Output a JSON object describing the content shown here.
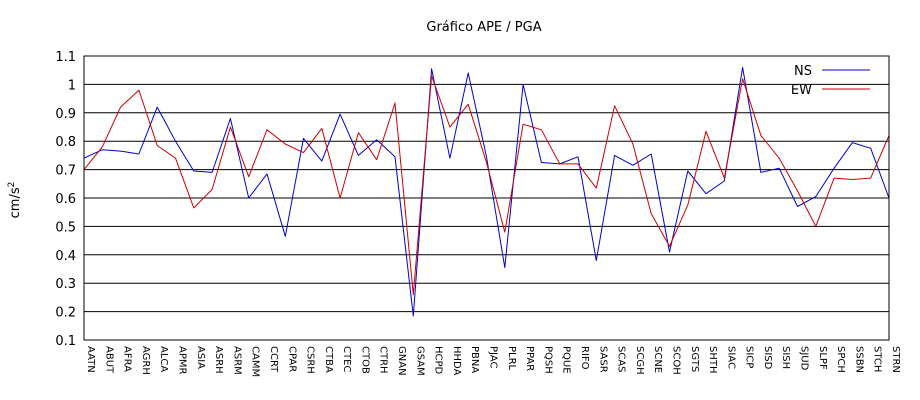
{
  "chart_data": {
    "type": "line",
    "title": "Gráfico  APE / PGA",
    "ylabel_main": "cm/s",
    "ylabel_sup": "2",
    "xlabel": "",
    "ylim": [
      0.1,
      1.1
    ],
    "yticks": [
      "0.1",
      "0.2",
      "0.3",
      "0.4",
      "0.5",
      "0.6",
      "0.7",
      "0.8",
      "0.9",
      "1",
      "1.1"
    ],
    "grid": "horizontal",
    "legend_position": "top-right",
    "categories": [
      "AATN",
      "ABUT",
      "AFRA",
      "AGRH",
      "ALCA",
      "APMR",
      "ASIA",
      "ASRH",
      "ASRM",
      "CAMM",
      "CCRT",
      "CPAR",
      "CSRH",
      "CTBA",
      "CTEC",
      "CTOB",
      "CTRH",
      "GNAN",
      "GSAM",
      "HCPD",
      "HHDA",
      "PBNA",
      "PJAC",
      "PLRL",
      "PPAR",
      "PQSH",
      "PQUE",
      "RIFO",
      "SASR",
      "SCAS",
      "SCGH",
      "SCNE",
      "SCOH",
      "SGTS",
      "SHTH",
      "SIAC",
      "SICP",
      "SISD",
      "SISH",
      "SJUD",
      "SLPF",
      "SPCH",
      "SSBN",
      "STCH",
      "STRN"
    ],
    "series": [
      {
        "name": "NS",
        "color": "#0000cc",
        "values": [
          0.74,
          0.77,
          0.765,
          0.755,
          0.92,
          0.8,
          0.695,
          0.69,
          0.88,
          0.6,
          0.685,
          0.465,
          0.81,
          0.73,
          0.895,
          0.75,
          0.805,
          0.745,
          0.185,
          1.055,
          0.74,
          1.04,
          0.745,
          0.355,
          1.0,
          0.725,
          0.72,
          0.745,
          0.38,
          0.75,
          0.715,
          0.755,
          0.41,
          0.695,
          0.615,
          0.66,
          1.06,
          0.69,
          0.705,
          0.57,
          0.605,
          0.705,
          0.795,
          0.775,
          0.6
        ]
      },
      {
        "name": "EW",
        "color": "#cc0000",
        "values": [
          0.7,
          0.78,
          0.92,
          0.98,
          0.785,
          0.74,
          0.565,
          0.63,
          0.85,
          0.675,
          0.84,
          0.79,
          0.76,
          0.845,
          0.6,
          0.83,
          0.735,
          0.935,
          0.26,
          1.03,
          0.85,
          0.93,
          0.725,
          0.48,
          0.86,
          0.84,
          0.72,
          0.72,
          0.635,
          0.925,
          0.79,
          0.545,
          0.43,
          0.575,
          0.835,
          0.67,
          1.02,
          0.82,
          0.74,
          0.625,
          0.5,
          0.67,
          0.665,
          0.67,
          0.82
        ]
      }
    ]
  }
}
